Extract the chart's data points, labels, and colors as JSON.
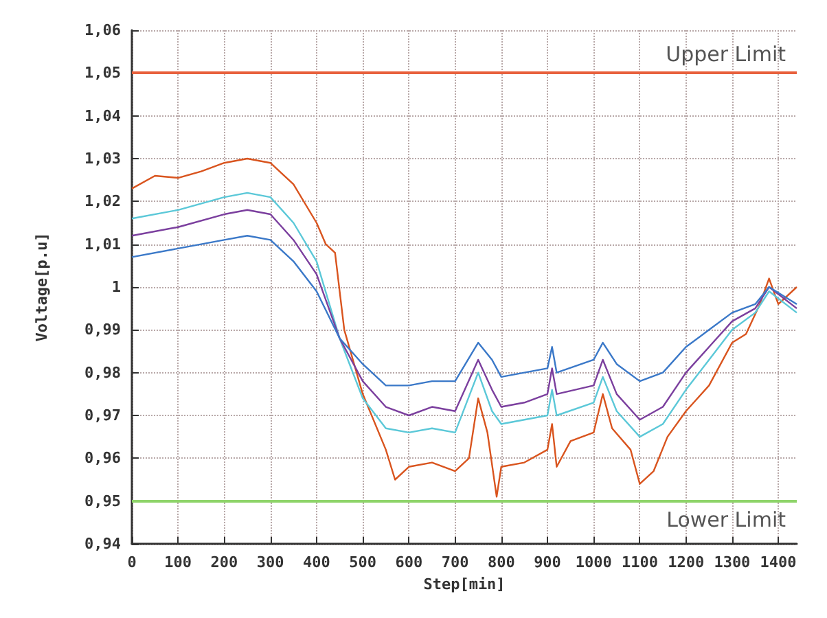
{
  "chart_data": {
    "type": "line",
    "xlabel": "Step[min]",
    "ylabel": "Voltage[p.u]",
    "xlim": [
      0,
      1440
    ],
    "xticks": [
      0,
      100,
      200,
      300,
      400,
      500,
      600,
      700,
      800,
      900,
      1000,
      1100,
      1200,
      1300,
      1400
    ],
    "ylim": [
      0.94,
      1.06
    ],
    "yticks": [
      {
        "value": 0.94,
        "label": "0,94"
      },
      {
        "value": 0.95,
        "label": "0,95"
      },
      {
        "value": 0.96,
        "label": "0,96"
      },
      {
        "value": 0.97,
        "label": "0,97"
      },
      {
        "value": 0.98,
        "label": "0,98"
      },
      {
        "value": 0.99,
        "label": "0,99"
      },
      1,
      {
        "value": 1.01,
        "label": "1,01"
      },
      {
        "value": 1.02,
        "label": "1,02"
      },
      {
        "value": 1.03,
        "label": "1,03"
      },
      {
        "value": 1.04,
        "label": "1,04"
      },
      {
        "value": 1.05,
        "label": "1,05"
      },
      {
        "value": 1.06,
        "label": "1,06"
      }
    ],
    "grid": true,
    "marker": "none",
    "line_style": "solid",
    "ref_lines": [
      {
        "axis": "y",
        "value": 1.05,
        "label": "Upper Limit",
        "color": "#e8603c"
      },
      {
        "axis": "y",
        "value": 0.95,
        "label": "Lower Limit",
        "color": "#8ed46a"
      }
    ],
    "series": [
      {
        "color": "#d9541e",
        "x": [
          0,
          50,
          100,
          150,
          200,
          250,
          300,
          350,
          400,
          420,
          440,
          460,
          500,
          550,
          570,
          600,
          650,
          700,
          730,
          750,
          770,
          790,
          800,
          850,
          900,
          910,
          920,
          950,
          1000,
          1020,
          1040,
          1080,
          1100,
          1130,
          1160,
          1200,
          1250,
          1300,
          1330,
          1360,
          1380,
          1400,
          1440
        ],
        "values": [
          1.023,
          1.026,
          1.0255,
          1.027,
          1.029,
          1.03,
          1.029,
          1.024,
          1.015,
          1.01,
          1.008,
          0.99,
          0.975,
          0.962,
          0.955,
          0.958,
          0.959,
          0.957,
          0.96,
          0.974,
          0.966,
          0.951,
          0.958,
          0.959,
          0.962,
          0.968,
          0.958,
          0.964,
          0.966,
          0.975,
          0.967,
          0.962,
          0.954,
          0.957,
          0.965,
          0.971,
          0.977,
          0.987,
          0.989,
          0.996,
          1.002,
          0.996,
          1.0
        ]
      },
      {
        "color": "#5bc8d8",
        "x": [
          0,
          100,
          200,
          250,
          300,
          350,
          400,
          450,
          500,
          550,
          600,
          650,
          700,
          750,
          780,
          800,
          850,
          900,
          910,
          920,
          1000,
          1020,
          1050,
          1100,
          1150,
          1200,
          1250,
          1300,
          1350,
          1380,
          1440
        ],
        "values": [
          1.016,
          1.018,
          1.021,
          1.022,
          1.021,
          1.015,
          1.006,
          0.988,
          0.974,
          0.967,
          0.966,
          0.967,
          0.966,
          0.98,
          0.971,
          0.968,
          0.969,
          0.97,
          0.976,
          0.97,
          0.973,
          0.979,
          0.971,
          0.965,
          0.968,
          0.976,
          0.983,
          0.99,
          0.994,
          0.999,
          0.994
        ]
      },
      {
        "color": "#7b3f9e",
        "x": [
          0,
          100,
          200,
          250,
          300,
          350,
          400,
          450,
          500,
          550,
          600,
          650,
          700,
          750,
          780,
          800,
          850,
          900,
          910,
          920,
          1000,
          1020,
          1050,
          1100,
          1150,
          1200,
          1250,
          1300,
          1350,
          1380,
          1440
        ],
        "values": [
          1.012,
          1.014,
          1.017,
          1.018,
          1.017,
          1.011,
          1.003,
          0.988,
          0.978,
          0.972,
          0.97,
          0.972,
          0.971,
          0.983,
          0.976,
          0.972,
          0.973,
          0.975,
          0.981,
          0.975,
          0.977,
          0.983,
          0.975,
          0.969,
          0.972,
          0.98,
          0.986,
          0.992,
          0.995,
          1.0,
          0.995
        ]
      },
      {
        "color": "#3a78c8",
        "x": [
          0,
          100,
          200,
          250,
          300,
          350,
          400,
          450,
          500,
          550,
          600,
          650,
          700,
          750,
          780,
          800,
          850,
          900,
          910,
          920,
          1000,
          1020,
          1050,
          1100,
          1150,
          1200,
          1250,
          1300,
          1350,
          1380,
          1440
        ],
        "values": [
          1.007,
          1.009,
          1.011,
          1.012,
          1.011,
          1.006,
          0.999,
          0.988,
          0.982,
          0.977,
          0.977,
          0.978,
          0.978,
          0.987,
          0.983,
          0.979,
          0.98,
          0.981,
          0.986,
          0.98,
          0.983,
          0.987,
          0.982,
          0.978,
          0.98,
          0.986,
          0.99,
          0.994,
          0.996,
          1.0,
          0.996
        ]
      }
    ]
  }
}
